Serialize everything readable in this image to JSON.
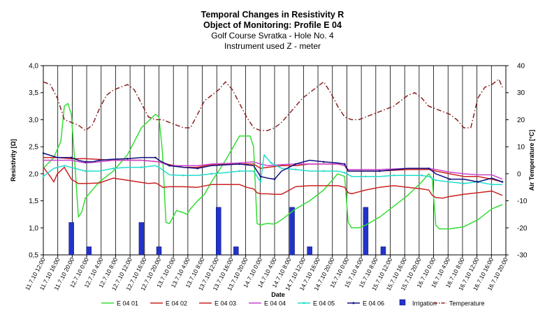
{
  "chart_data": {
    "type": "line",
    "title": "Temporal Changes in Resistivity R",
    "subtitle_lines": [
      "Object of Monitoring:  Profile E 04",
      "Golf Course Svratka - Hole No. 4",
      "Instrument used Z - meter"
    ],
    "xlabel": "Date",
    "ylabel": "Resistivity [Ω]",
    "y2label": "Air Temperature [°C]",
    "ylim": [
      0.5,
      4.0
    ],
    "y2lim": [
      -30,
      40
    ],
    "yticks": [
      "0,5",
      "1,0",
      "1,5",
      "2,0",
      "2,5",
      "3,0",
      "3,5",
      "4,0"
    ],
    "y2ticks": [
      "-30",
      "-20",
      "-10",
      "0",
      "10",
      "20",
      "30",
      "40"
    ],
    "xlim": [
      0,
      132
    ],
    "x_unit": "hours from 11.7.10 12:00",
    "xtick_labels": [
      "11.7.10 12:00",
      "11.7.10 16:00",
      "11.7.10 20:00",
      "12.7.10 0:00",
      "12.7.10 4:00",
      "12.7.10 8:00",
      "12.7.10 12:00",
      "12.7.10 16:00",
      "12.7.10 20:00",
      "13.7.10 0:00",
      "13.7.10 4:00",
      "13.7.10 8:00",
      "13.7.10 12:00",
      "13.7.10 16:00",
      "13.7.10 20:00",
      "14.7.10 0:00",
      "14.7.10 4:00",
      "14.7.10 8:00",
      "14.7.10 12:00",
      "14.7.10 16:00",
      "14.7.10 20:00",
      "15.7.10 0:00",
      "15.7.10 4:00",
      "15.7.10 8:00",
      "15.7.10 12:00",
      "15.7.10 16:00",
      "15.7.10 20:00",
      "16.7.10 0:00",
      "16.7.10 4:00",
      "16.7.10 8:00",
      "16.7.10 12:00",
      "16.7.10 16:00",
      "16.7.10 20:00"
    ],
    "grid": "vertical",
    "legend_position": "bottom",
    "series": [
      {
        "name": "E 04 01",
        "color": "#33dd33",
        "marker": "none",
        "axis": "left",
        "x": [
          0,
          3,
          5,
          6,
          7,
          8,
          9,
          10,
          11,
          12,
          14,
          16,
          20,
          24,
          28,
          32,
          33,
          34,
          35,
          36,
          37,
          38,
          40,
          41,
          42,
          44,
          46,
          48,
          52,
          56,
          59,
          60,
          61,
          62,
          63,
          64,
          66,
          68,
          72,
          76,
          80,
          84,
          86,
          87,
          88,
          90,
          92,
          96,
          100,
          104,
          108,
          110,
          111,
          112,
          113,
          116,
          118,
          120,
          124,
          128,
          131
        ],
        "y": [
          2.1,
          2.3,
          2.6,
          3.25,
          3.3,
          3.1,
          2.2,
          1.2,
          1.3,
          1.55,
          1.7,
          1.85,
          2.05,
          2.35,
          2.85,
          3.1,
          3.05,
          2.4,
          1.1,
          1.08,
          1.2,
          1.32,
          1.28,
          1.25,
          1.35,
          1.5,
          1.62,
          1.85,
          2.25,
          2.7,
          2.7,
          2.5,
          1.08,
          1.05,
          1.07,
          1.08,
          1.07,
          1.15,
          1.35,
          1.5,
          1.7,
          2.0,
          1.95,
          1.1,
          1.0,
          1.0,
          1.05,
          1.2,
          1.4,
          1.6,
          1.85,
          2.0,
          1.9,
          1.05,
          0.98,
          0.98,
          1.0,
          1.02,
          1.15,
          1.35,
          1.43
        ]
      },
      {
        "name": "E 04 02",
        "color": "#cc2222",
        "marker": "none",
        "axis": "left",
        "x": [
          0,
          2,
          3,
          4,
          6,
          8,
          10,
          12,
          16,
          20,
          24,
          28,
          30,
          32,
          33,
          34,
          36,
          40,
          44,
          48,
          52,
          56,
          58,
          60,
          61,
          62,
          64,
          66,
          68,
          72,
          76,
          80,
          84,
          86,
          87,
          88,
          92,
          96,
          100,
          104,
          108,
          110,
          111,
          112,
          114,
          116,
          120,
          124,
          128,
          131
        ],
        "y": [
          2.12,
          1.95,
          1.85,
          2.0,
          2.12,
          1.9,
          1.82,
          1.82,
          1.83,
          1.92,
          1.88,
          1.84,
          1.82,
          1.83,
          1.8,
          1.75,
          1.76,
          1.76,
          1.75,
          1.8,
          1.8,
          1.8,
          1.75,
          1.72,
          1.65,
          1.63,
          1.63,
          1.62,
          1.62,
          1.76,
          1.78,
          1.78,
          1.78,
          1.75,
          1.65,
          1.63,
          1.7,
          1.75,
          1.78,
          1.75,
          1.72,
          1.7,
          1.6,
          1.56,
          1.55,
          1.58,
          1.62,
          1.65,
          1.68,
          1.6
        ]
      },
      {
        "name": "E 04 03",
        "color": "#cc2222",
        "marker": "none",
        "axis": "left",
        "x": [
          0,
          4,
          8,
          12,
          20,
          28,
          33,
          36,
          40,
          44,
          48,
          56,
          60,
          62,
          64,
          68,
          72,
          76,
          80,
          84,
          86,
          87,
          96,
          104,
          110,
          112,
          116,
          120,
          124,
          128,
          131
        ],
        "y": [
          2.3,
          2.3,
          2.28,
          2.28,
          2.25,
          2.25,
          2.22,
          2.17,
          2.12,
          2.12,
          2.17,
          2.18,
          2.18,
          2.1,
          2.12,
          2.15,
          2.15,
          2.18,
          2.18,
          2.18,
          2.15,
          2.05,
          2.05,
          2.08,
          2.08,
          2.05,
          2.0,
          1.95,
          1.95,
          1.9,
          1.85
        ]
      },
      {
        "name": "E 04 04",
        "color": "#cc44cc",
        "marker": "none",
        "axis": "left",
        "x": [
          0,
          4,
          8,
          12,
          16,
          20,
          28,
          33,
          36,
          40,
          44,
          48,
          56,
          60,
          62,
          64,
          68,
          72,
          76,
          80,
          84,
          86,
          87,
          96,
          104,
          110,
          112,
          116,
          120,
          124,
          128,
          131
        ],
        "y": [
          2.25,
          2.25,
          2.25,
          2.2,
          2.22,
          2.25,
          2.25,
          2.22,
          2.15,
          2.15,
          2.15,
          2.18,
          2.2,
          2.22,
          2.18,
          2.15,
          2.17,
          2.18,
          2.18,
          2.18,
          2.18,
          2.15,
          2.08,
          2.08,
          2.1,
          2.1,
          2.08,
          2.03,
          2.0,
          1.98,
          1.98,
          1.9
        ]
      },
      {
        "name": "E 04 05",
        "color": "#22ddcc",
        "marker": "dot",
        "axis": "left",
        "x": [
          0,
          3,
          6,
          9,
          12,
          16,
          20,
          24,
          28,
          32,
          33,
          36,
          40,
          44,
          48,
          52,
          56,
          60,
          62,
          63,
          65,
          68,
          72,
          76,
          80,
          84,
          86,
          88,
          92,
          96,
          100,
          104,
          108,
          110,
          112,
          116,
          120,
          124,
          128,
          131
        ],
        "y": [
          1.95,
          2.1,
          2.15,
          2.1,
          2.05,
          2.05,
          2.1,
          2.12,
          2.12,
          2.15,
          2.12,
          1.98,
          1.97,
          1.97,
          2.0,
          2.02,
          2.05,
          2.05,
          1.85,
          2.35,
          2.2,
          2.1,
          2.08,
          2.05,
          2.05,
          2.05,
          2.02,
          1.95,
          1.95,
          1.95,
          1.97,
          1.97,
          1.97,
          1.95,
          1.88,
          1.85,
          1.82,
          1.85,
          1.8,
          1.8
        ]
      },
      {
        "name": "E 04 06",
        "color": "#101080",
        "marker": "dot",
        "axis": "left",
        "x": [
          0,
          4,
          8,
          10,
          12,
          14,
          16,
          20,
          24,
          28,
          32,
          33,
          36,
          40,
          44,
          48,
          56,
          60,
          62,
          64,
          66,
          68,
          72,
          76,
          80,
          84,
          86,
          87,
          96,
          104,
          110,
          112,
          116,
          120,
          124,
          128,
          131
        ],
        "y": [
          2.38,
          2.3,
          2.3,
          2.25,
          2.22,
          2.22,
          2.25,
          2.27,
          2.28,
          2.3,
          2.3,
          2.25,
          2.15,
          2.12,
          2.1,
          2.15,
          2.18,
          2.15,
          1.95,
          1.92,
          1.9,
          2.05,
          2.18,
          2.25,
          2.22,
          2.2,
          2.18,
          2.05,
          2.05,
          2.1,
          2.1,
          2.0,
          1.9,
          1.9,
          1.85,
          1.92,
          1.85
        ]
      },
      {
        "name": "Temperature",
        "color": "#882222",
        "marker": "dash-dot",
        "axis": "right",
        "x": [
          0,
          2,
          4,
          6,
          8,
          10,
          12,
          14,
          16,
          18,
          20,
          22,
          24,
          26,
          28,
          30,
          32,
          34,
          36,
          38,
          40,
          42,
          44,
          46,
          48,
          50,
          52,
          54,
          56,
          58,
          60,
          62,
          64,
          66,
          68,
          70,
          72,
          74,
          76,
          78,
          80,
          82,
          84,
          86,
          88,
          90,
          92,
          94,
          96,
          98,
          100,
          102,
          104,
          106,
          108,
          110,
          112,
          114,
          116,
          118,
          120,
          122,
          124,
          126,
          128,
          130,
          131
        ],
        "y": [
          34,
          33,
          28,
          20,
          19,
          18,
          16,
          18,
          24,
          29,
          31,
          32,
          33,
          31,
          26,
          21,
          20,
          20,
          19,
          18,
          17,
          17,
          22,
          27,
          29,
          31,
          34,
          31,
          26,
          21,
          17,
          16,
          16,
          17,
          19,
          22,
          25,
          28,
          30,
          32,
          34,
          30,
          25,
          21,
          20,
          20,
          21,
          22,
          23,
          24,
          25,
          27,
          29,
          30,
          28,
          25,
          24,
          23,
          22,
          20,
          17,
          17,
          28,
          32,
          33,
          35,
          32
        ]
      }
    ],
    "irrigation": {
      "name": "Irrigation",
      "color": "#2233cc",
      "x": [
        8,
        13,
        28,
        33,
        50,
        55,
        71,
        76,
        92,
        97
      ],
      "y": [
        1.1,
        0.65,
        1.1,
        0.65,
        1.38,
        0.65,
        1.38,
        0.65,
        1.38,
        0.65
      ]
    }
  }
}
